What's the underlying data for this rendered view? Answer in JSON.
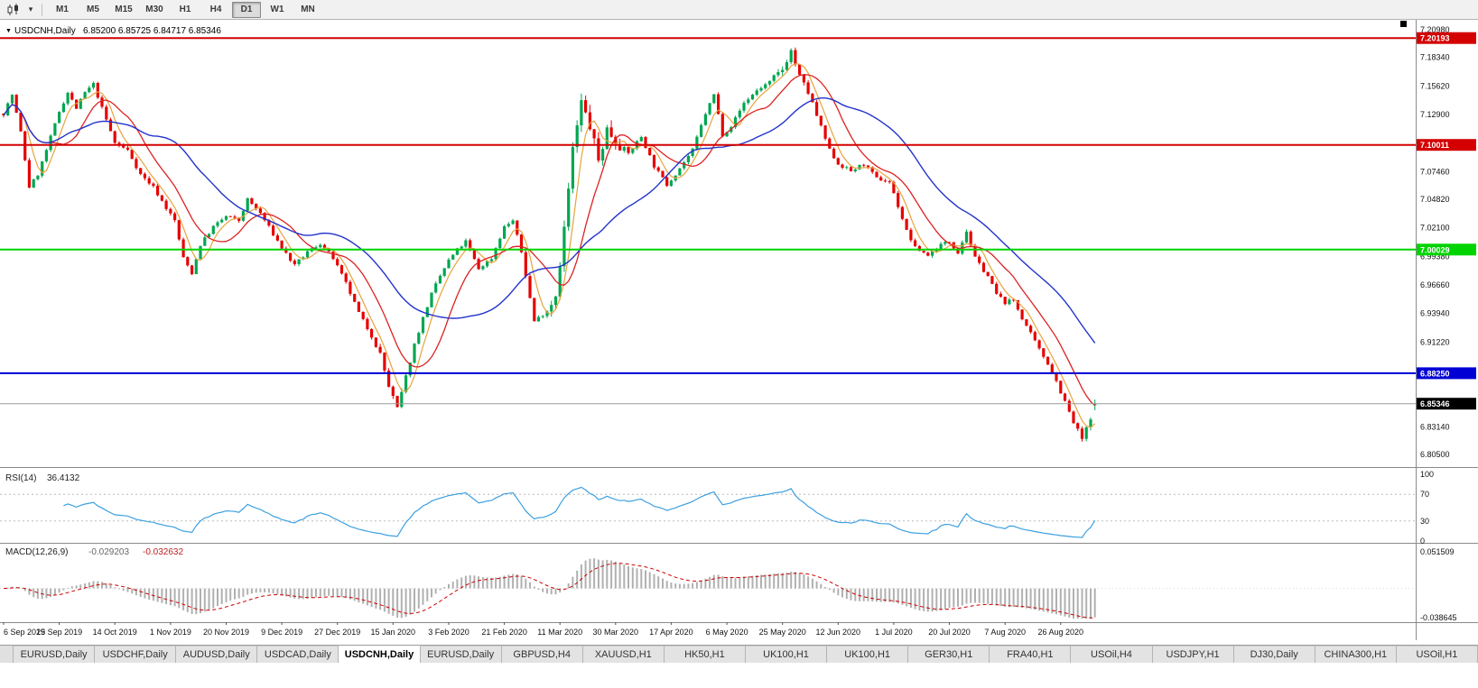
{
  "toolbar": {
    "timeframes": [
      {
        "label": "M1",
        "active": false
      },
      {
        "label": "M5",
        "active": false
      },
      {
        "label": "M15",
        "active": false
      },
      {
        "label": "M30",
        "active": false
      },
      {
        "label": "H1",
        "active": false
      },
      {
        "label": "H4",
        "active": false
      },
      {
        "label": "D1",
        "active": true
      },
      {
        "label": "W1",
        "active": false
      },
      {
        "label": "MN",
        "active": false
      }
    ]
  },
  "chart": {
    "symbol_title": "USDCNH,Daily",
    "ohlc_text": "6.85200 6.85725 6.84717 6.85346",
    "scale_top": 7.2124,
    "scale_bottom": 6.793,
    "levels": [
      {
        "price": 7.20193,
        "label": "7.20193",
        "color": "#d40000"
      },
      {
        "price": 7.10011,
        "label": "7.10011",
        "color": "#d40000"
      },
      {
        "price": 7.00029,
        "label": "7.00029",
        "color": "#00d400"
      },
      {
        "price": 6.8825,
        "label": "6.88250",
        "color": "#0000d4"
      }
    ],
    "current_price": {
      "price": 6.85346,
      "label": "6.85346",
      "badge_color": "#000000",
      "line_color": "#999999"
    },
    "price_axis_ticks": [
      "7.20980",
      "7.18340",
      "7.15620",
      "7.12900",
      "7.07460",
      "7.04820",
      "7.02100",
      "6.99380",
      "6.96660",
      "6.93940",
      "6.91220",
      "6.83140",
      "6.80500"
    ],
    "colors": {
      "up": "#00a651",
      "down": "#e60000",
      "ma_fast": "#e8a33d",
      "ma_mid": "#dd2222",
      "ma_slow": "#2233cc"
    }
  },
  "rsi": {
    "label": "RSI(14)",
    "value": "36.4132",
    "period": 14,
    "line_color": "#3da0e0",
    "levels": [
      70,
      30
    ],
    "ticks": [
      {
        "v": 100,
        "label": "100"
      },
      {
        "v": 70,
        "label": "70"
      },
      {
        "v": 30,
        "label": "30"
      },
      {
        "v": 0,
        "label": "0"
      }
    ]
  },
  "macd": {
    "label": "MACD(12,26,9)",
    "value_main": "-0.029203",
    "value_signal": "-0.032632",
    "fast": 12,
    "slow": 26,
    "signal": 9,
    "scale_max": 0.051509,
    "scale_min": -0.038645,
    "tick_max": "0.051509",
    "tick_min": "-0.038645",
    "hist_color": "#b0b0b0",
    "signal_color": "#cc0000"
  },
  "date_axis": {
    "step": 13,
    "labels": [
      "6 Sep 2019",
      "25 Sep 2019",
      "14 Oct 2019",
      "1 Nov 2019",
      "20 Nov 2019",
      "9 Dec 2019",
      "27 Dec 2019",
      "15 Jan 2020",
      "3 Feb 2020",
      "21 Feb 2020",
      "11 Mar 2020",
      "30 Mar 2020",
      "17 Apr 2020",
      "6 May 2020",
      "25 May 2020",
      "12 Jun 2020",
      "1 Jul 2020",
      "20 Jul 2020",
      "7 Aug 2020",
      "26 Aug 2020"
    ]
  },
  "tabs": {
    "active_index": 4,
    "items": [
      "EURUSD,Daily",
      "USDCHF,Daily",
      "AUDUSD,Daily",
      "USDCAD,Daily",
      "USDCNH,Daily",
      "EURUSD,Daily",
      "GBPUSD,H4",
      "XAUUSD,H1",
      "HK50,H1",
      "UK100,H1",
      "UK100,H1",
      "GER30,H1",
      "FRA40,H1",
      "USOil,H4",
      "USDJPY,H1",
      "DJ30,Daily",
      "CHINA300,H1",
      "USOil,H1"
    ]
  },
  "chart_data": {
    "type": "candlestick",
    "symbol": "USDCNH",
    "timeframe": "Daily",
    "count": 256,
    "last_candle": {
      "open": 6.852,
      "high": 6.85725,
      "low": 6.84717,
      "close": 6.85346
    },
    "close_anchors": [
      [
        0,
        7.13
      ],
      [
        2,
        7.148
      ],
      [
        4,
        7.112
      ],
      [
        6,
        7.06
      ],
      [
        8,
        7.072
      ],
      [
        10,
        7.095
      ],
      [
        13,
        7.132
      ],
      [
        15,
        7.15
      ],
      [
        17,
        7.135
      ],
      [
        19,
        7.15
      ],
      [
        21,
        7.158
      ],
      [
        23,
        7.135
      ],
      [
        26,
        7.102
      ],
      [
        29,
        7.095
      ],
      [
        32,
        7.072
      ],
      [
        35,
        7.06
      ],
      [
        38,
        7.04
      ],
      [
        40,
        7.028
      ],
      [
        42,
        6.992
      ],
      [
        44,
        6.978
      ],
      [
        46,
        7.005
      ],
      [
        49,
        7.022
      ],
      [
        52,
        7.032
      ],
      [
        55,
        7.028
      ],
      [
        57,
        7.048
      ],
      [
        60,
        7.035
      ],
      [
        63,
        7.015
      ],
      [
        65,
        7.002
      ],
      [
        68,
        6.985
      ],
      [
        71,
        6.998
      ],
      [
        74,
        7.006
      ],
      [
        77,
        6.992
      ],
      [
        80,
        6.968
      ],
      [
        83,
        6.94
      ],
      [
        86,
        6.918
      ],
      [
        88,
        6.9
      ],
      [
        90,
        6.87
      ],
      [
        92,
        6.848
      ],
      [
        94,
        6.878
      ],
      [
        96,
        6.91
      ],
      [
        98,
        6.935
      ],
      [
        100,
        6.958
      ],
      [
        102,
        6.975
      ],
      [
        104,
        6.99
      ],
      [
        106,
        7.0
      ],
      [
        108,
        7.008
      ],
      [
        111,
        6.982
      ],
      [
        114,
        6.992
      ],
      [
        117,
        7.022
      ],
      [
        119,
        7.028
      ],
      [
        121,
        6.998
      ],
      [
        124,
        6.932
      ],
      [
        127,
        6.942
      ],
      [
        129,
        6.958
      ],
      [
        131,
        7.02
      ],
      [
        133,
        7.095
      ],
      [
        135,
        7.14
      ],
      [
        137,
        7.118
      ],
      [
        139,
        7.085
      ],
      [
        141,
        7.115
      ],
      [
        143,
        7.105
      ],
      [
        146,
        7.092
      ],
      [
        149,
        7.108
      ],
      [
        152,
        7.08
      ],
      [
        155,
        7.062
      ],
      [
        158,
        7.078
      ],
      [
        161,
        7.095
      ],
      [
        164,
        7.13
      ],
      [
        166,
        7.148
      ],
      [
        168,
        7.11
      ],
      [
        170,
        7.118
      ],
      [
        173,
        7.14
      ],
      [
        176,
        7.152
      ],
      [
        179,
        7.16
      ],
      [
        182,
        7.172
      ],
      [
        184,
        7.19
      ],
      [
        186,
        7.165
      ],
      [
        188,
        7.15
      ],
      [
        190,
        7.128
      ],
      [
        193,
        7.095
      ],
      [
        195,
        7.082
      ],
      [
        198,
        7.075
      ],
      [
        201,
        7.082
      ],
      [
        204,
        7.068
      ],
      [
        207,
        7.065
      ],
      [
        209,
        7.042
      ],
      [
        211,
        7.018
      ],
      [
        213,
        7.002
      ],
      [
        216,
        6.995
      ],
      [
        219,
        7.005
      ],
      [
        221,
        7.008
      ],
      [
        223,
        6.998
      ],
      [
        225,
        7.018
      ],
      [
        227,
        6.992
      ],
      [
        230,
        6.975
      ],
      [
        232,
        6.958
      ],
      [
        234,
        6.95
      ],
      [
        236,
        6.952
      ],
      [
        238,
        6.935
      ],
      [
        240,
        6.92
      ],
      [
        242,
        6.905
      ],
      [
        244,
        6.892
      ],
      [
        246,
        6.875
      ],
      [
        248,
        6.855
      ],
      [
        250,
        6.835
      ],
      [
        252,
        6.82
      ],
      [
        254,
        6.838
      ],
      [
        255,
        6.853
      ]
    ]
  }
}
